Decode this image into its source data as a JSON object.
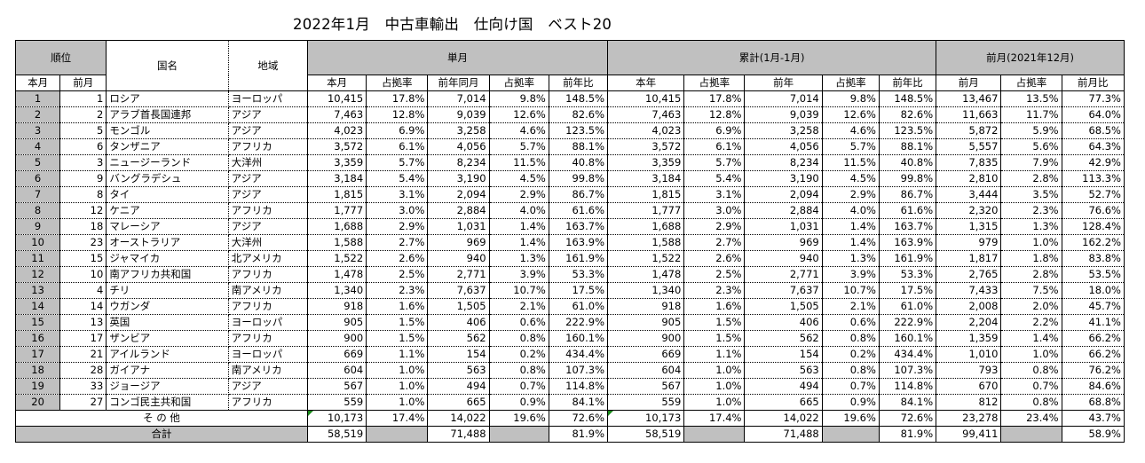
{
  "title": "2022年1月　中古車輸出　仕向け国　ベスト20",
  "headers": {
    "rank": "順位",
    "country": "国名",
    "region": "地域",
    "single": "単月",
    "cumulative": "累計(1月-1月)",
    "prev_month": "前月(2021年12月)",
    "this_month_rank": "本月",
    "prev_month_rank": "前月",
    "s_this": "本月",
    "s_share": "占拠率",
    "s_ly": "前年同月",
    "s_ly_share": "占拠率",
    "s_yoy": "前年比",
    "c_this": "本年",
    "c_share": "占拠率",
    "c_ly": "前年",
    "c_ly_share": "占拠率",
    "c_yoy": "前年比",
    "p_val": "前月",
    "p_share": "占拠率",
    "p_mom": "前月比"
  },
  "rows": [
    {
      "r": "1",
      "pr": "1",
      "country": "ロシア",
      "region": "ヨーロッパ",
      "s_this": "10,415",
      "s_share": "17.8%",
      "s_ly": "7,014",
      "s_ly_share": "9.8%",
      "s_yoy": "148.5%",
      "c_this": "10,415",
      "c_share": "17.8%",
      "c_ly": "7,014",
      "c_ly_share": "9.8%",
      "c_yoy": "148.5%",
      "p_val": "13,467",
      "p_share": "13.5%",
      "p_mom": "77.3%"
    },
    {
      "r": "2",
      "pr": "2",
      "country": "アラブ首長国連邦",
      "region": "アジア",
      "s_this": "7,463",
      "s_share": "12.8%",
      "s_ly": "9,039",
      "s_ly_share": "12.6%",
      "s_yoy": "82.6%",
      "c_this": "7,463",
      "c_share": "12.8%",
      "c_ly": "9,039",
      "c_ly_share": "12.6%",
      "c_yoy": "82.6%",
      "p_val": "11,663",
      "p_share": "11.7%",
      "p_mom": "64.0%"
    },
    {
      "r": "3",
      "pr": "5",
      "country": "モンゴル",
      "region": "アジア",
      "s_this": "4,023",
      "s_share": "6.9%",
      "s_ly": "3,258",
      "s_ly_share": "4.6%",
      "s_yoy": "123.5%",
      "c_this": "4,023",
      "c_share": "6.9%",
      "c_ly": "3,258",
      "c_ly_share": "4.6%",
      "c_yoy": "123.5%",
      "p_val": "5,872",
      "p_share": "5.9%",
      "p_mom": "68.5%"
    },
    {
      "r": "4",
      "pr": "6",
      "country": "タンザニア",
      "region": "アフリカ",
      "s_this": "3,572",
      "s_share": "6.1%",
      "s_ly": "4,056",
      "s_ly_share": "5.7%",
      "s_yoy": "88.1%",
      "c_this": "3,572",
      "c_share": "6.1%",
      "c_ly": "4,056",
      "c_ly_share": "5.7%",
      "c_yoy": "88.1%",
      "p_val": "5,557",
      "p_share": "5.6%",
      "p_mom": "64.3%"
    },
    {
      "r": "5",
      "pr": "3",
      "country": "ニュージーランド",
      "region": "大洋州",
      "s_this": "3,359",
      "s_share": "5.7%",
      "s_ly": "8,234",
      "s_ly_share": "11.5%",
      "s_yoy": "40.8%",
      "c_this": "3,359",
      "c_share": "5.7%",
      "c_ly": "8,234",
      "c_ly_share": "11.5%",
      "c_yoy": "40.8%",
      "p_val": "7,835",
      "p_share": "7.9%",
      "p_mom": "42.9%"
    },
    {
      "r": "6",
      "pr": "9",
      "country": "バングラデシュ",
      "region": "アジア",
      "s_this": "3,184",
      "s_share": "5.4%",
      "s_ly": "3,190",
      "s_ly_share": "4.5%",
      "s_yoy": "99.8%",
      "c_this": "3,184",
      "c_share": "5.4%",
      "c_ly": "3,190",
      "c_ly_share": "4.5%",
      "c_yoy": "99.8%",
      "p_val": "2,810",
      "p_share": "2.8%",
      "p_mom": "113.3%"
    },
    {
      "r": "7",
      "pr": "8",
      "country": "タイ",
      "region": "アジア",
      "s_this": "1,815",
      "s_share": "3.1%",
      "s_ly": "2,094",
      "s_ly_share": "2.9%",
      "s_yoy": "86.7%",
      "c_this": "1,815",
      "c_share": "3.1%",
      "c_ly": "2,094",
      "c_ly_share": "2.9%",
      "c_yoy": "86.7%",
      "p_val": "3,444",
      "p_share": "3.5%",
      "p_mom": "52.7%"
    },
    {
      "r": "8",
      "pr": "12",
      "country": "ケニア",
      "region": "アフリカ",
      "s_this": "1,777",
      "s_share": "3.0%",
      "s_ly": "2,884",
      "s_ly_share": "4.0%",
      "s_yoy": "61.6%",
      "c_this": "1,777",
      "c_share": "3.0%",
      "c_ly": "2,884",
      "c_ly_share": "4.0%",
      "c_yoy": "61.6%",
      "p_val": "2,320",
      "p_share": "2.3%",
      "p_mom": "76.6%"
    },
    {
      "r": "9",
      "pr": "18",
      "country": "マレーシア",
      "region": "アジア",
      "s_this": "1,688",
      "s_share": "2.9%",
      "s_ly": "1,031",
      "s_ly_share": "1.4%",
      "s_yoy": "163.7%",
      "c_this": "1,688",
      "c_share": "2.9%",
      "c_ly": "1,031",
      "c_ly_share": "1.4%",
      "c_yoy": "163.7%",
      "p_val": "1,315",
      "p_share": "1.3%",
      "p_mom": "128.4%"
    },
    {
      "r": "10",
      "pr": "23",
      "country": "オーストラリア",
      "region": "大洋州",
      "s_this": "1,588",
      "s_share": "2.7%",
      "s_ly": "969",
      "s_ly_share": "1.4%",
      "s_yoy": "163.9%",
      "c_this": "1,588",
      "c_share": "2.7%",
      "c_ly": "969",
      "c_ly_share": "1.4%",
      "c_yoy": "163.9%",
      "p_val": "979",
      "p_share": "1.0%",
      "p_mom": "162.2%"
    },
    {
      "r": "11",
      "pr": "15",
      "country": "ジャマイカ",
      "region": "北アメリカ",
      "s_this": "1,522",
      "s_share": "2.6%",
      "s_ly": "940",
      "s_ly_share": "1.3%",
      "s_yoy": "161.9%",
      "c_this": "1,522",
      "c_share": "2.6%",
      "c_ly": "940",
      "c_ly_share": "1.3%",
      "c_yoy": "161.9%",
      "p_val": "1,817",
      "p_share": "1.8%",
      "p_mom": "83.8%"
    },
    {
      "r": "12",
      "pr": "10",
      "country": "南アフリカ共和国",
      "region": "アフリカ",
      "s_this": "1,478",
      "s_share": "2.5%",
      "s_ly": "2,771",
      "s_ly_share": "3.9%",
      "s_yoy": "53.3%",
      "c_this": "1,478",
      "c_share": "2.5%",
      "c_ly": "2,771",
      "c_ly_share": "3.9%",
      "c_yoy": "53.3%",
      "p_val": "2,765",
      "p_share": "2.8%",
      "p_mom": "53.5%"
    },
    {
      "r": "13",
      "pr": "4",
      "country": "チリ",
      "region": "南アメリカ",
      "s_this": "1,340",
      "s_share": "2.3%",
      "s_ly": "7,637",
      "s_ly_share": "10.7%",
      "s_yoy": "17.5%",
      "c_this": "1,340",
      "c_share": "2.3%",
      "c_ly": "7,637",
      "c_ly_share": "10.7%",
      "c_yoy": "17.5%",
      "p_val": "7,433",
      "p_share": "7.5%",
      "p_mom": "18.0%"
    },
    {
      "r": "14",
      "pr": "14",
      "country": "ウガンダ",
      "region": "アフリカ",
      "s_this": "918",
      "s_share": "1.6%",
      "s_ly": "1,505",
      "s_ly_share": "2.1%",
      "s_yoy": "61.0%",
      "c_this": "918",
      "c_share": "1.6%",
      "c_ly": "1,505",
      "c_ly_share": "2.1%",
      "c_yoy": "61.0%",
      "p_val": "2,008",
      "p_share": "2.0%",
      "p_mom": "45.7%"
    },
    {
      "r": "15",
      "pr": "13",
      "country": "英国",
      "region": "ヨーロッパ",
      "s_this": "905",
      "s_share": "1.5%",
      "s_ly": "406",
      "s_ly_share": "0.6%",
      "s_yoy": "222.9%",
      "c_this": "905",
      "c_share": "1.5%",
      "c_ly": "406",
      "c_ly_share": "0.6%",
      "c_yoy": "222.9%",
      "p_val": "2,204",
      "p_share": "2.2%",
      "p_mom": "41.1%"
    },
    {
      "r": "16",
      "pr": "17",
      "country": "ザンビア",
      "region": "アフリカ",
      "s_this": "900",
      "s_share": "1.5%",
      "s_ly": "562",
      "s_ly_share": "0.8%",
      "s_yoy": "160.1%",
      "c_this": "900",
      "c_share": "1.5%",
      "c_ly": "562",
      "c_ly_share": "0.8%",
      "c_yoy": "160.1%",
      "p_val": "1,359",
      "p_share": "1.4%",
      "p_mom": "66.2%"
    },
    {
      "r": "17",
      "pr": "21",
      "country": "アイルランド",
      "region": "ヨーロッパ",
      "s_this": "669",
      "s_share": "1.1%",
      "s_ly": "154",
      "s_ly_share": "0.2%",
      "s_yoy": "434.4%",
      "c_this": "669",
      "c_share": "1.1%",
      "c_ly": "154",
      "c_ly_share": "0.2%",
      "c_yoy": "434.4%",
      "p_val": "1,010",
      "p_share": "1.0%",
      "p_mom": "66.2%"
    },
    {
      "r": "18",
      "pr": "28",
      "country": "ガイアナ",
      "region": "南アメリカ",
      "s_this": "604",
      "s_share": "1.0%",
      "s_ly": "563",
      "s_ly_share": "0.8%",
      "s_yoy": "107.3%",
      "c_this": "604",
      "c_share": "1.0%",
      "c_ly": "563",
      "c_ly_share": "0.8%",
      "c_yoy": "107.3%",
      "p_val": "793",
      "p_share": "0.8%",
      "p_mom": "76.2%"
    },
    {
      "r": "19",
      "pr": "33",
      "country": "ジョージア",
      "region": "アジア",
      "s_this": "567",
      "s_share": "1.0%",
      "s_ly": "494",
      "s_ly_share": "0.7%",
      "s_yoy": "114.8%",
      "c_this": "567",
      "c_share": "1.0%",
      "c_ly": "494",
      "c_ly_share": "0.7%",
      "c_yoy": "114.8%",
      "p_val": "670",
      "p_share": "0.7%",
      "p_mom": "84.6%"
    },
    {
      "r": "20",
      "pr": "27",
      "country": "コンゴ民主共和国",
      "region": "アフリカ",
      "s_this": "559",
      "s_share": "1.0%",
      "s_ly": "665",
      "s_ly_share": "0.9%",
      "s_yoy": "84.1%",
      "c_this": "559",
      "c_share": "1.0%",
      "c_ly": "665",
      "c_ly_share": "0.9%",
      "c_yoy": "84.1%",
      "p_val": "812",
      "p_share": "0.8%",
      "p_mom": "68.8%"
    }
  ],
  "other": {
    "label": "そ の 他",
    "s_this": "10,173",
    "s_share": "17.4%",
    "s_ly": "14,022",
    "s_ly_share": "19.6%",
    "s_yoy": "72.6%",
    "c_this": "10,173",
    "c_share": "17.4%",
    "c_ly": "14,022",
    "c_ly_share": "19.6%",
    "c_yoy": "72.6%",
    "p_val": "23,278",
    "p_share": "23.4%",
    "p_mom": "43.7%"
  },
  "total": {
    "label": "合計",
    "s_this": "58,519",
    "s_ly": "71,488",
    "s_yoy": "81.9%",
    "c_this": "58,519",
    "c_ly": "71,488",
    "c_yoy": "81.9%",
    "p_val": "99,411",
    "p_mom": "58.9%"
  }
}
